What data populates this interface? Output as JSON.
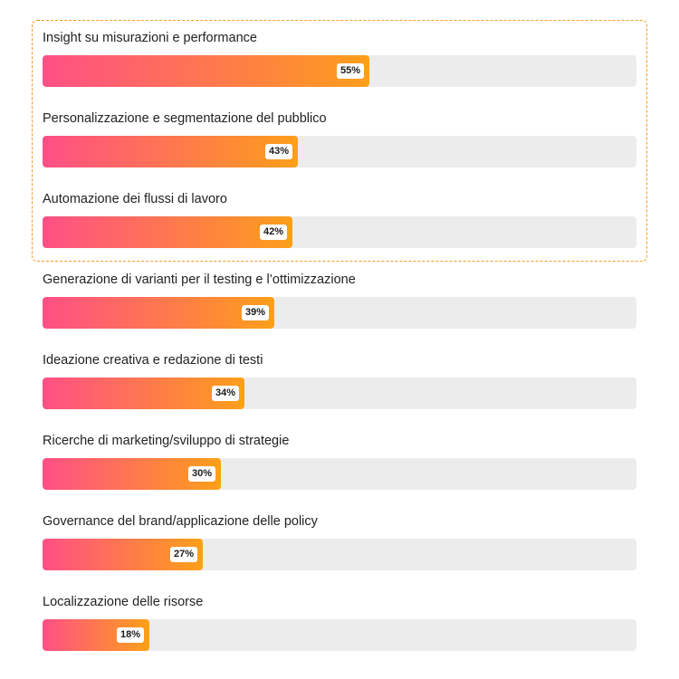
{
  "chart_data": {
    "type": "bar",
    "orientation": "horizontal",
    "categories": [
      "Insight su misurazioni e performance",
      "Personalizzazione e segmentazione del pubblico",
      "Automazione dei flussi di lavoro",
      "Generazione di varianti per il testing e l’ottimizzazione",
      "Ideazione creativa e redazione di testi",
      "Ricerche di marketing/sviluppo di strategie",
      "Governance del brand/applicazione delle policy",
      "Localizzazione delle risorse"
    ],
    "values": [
      55,
      43,
      42,
      39,
      34,
      30,
      27,
      18
    ],
    "value_labels": [
      "55%",
      "43%",
      "42%",
      "39%",
      "34%",
      "30%",
      "27%",
      "18%"
    ],
    "xlim": [
      0,
      100
    ],
    "highlighted_count": 3,
    "grid": false,
    "legend": "none"
  },
  "colors": {
    "gradient_start": "#ff4f86",
    "gradient_end": "#fd9d1c",
    "bar_end_cap": "#fda016",
    "track": "#ececec",
    "highlight_border": "#f59a23"
  }
}
